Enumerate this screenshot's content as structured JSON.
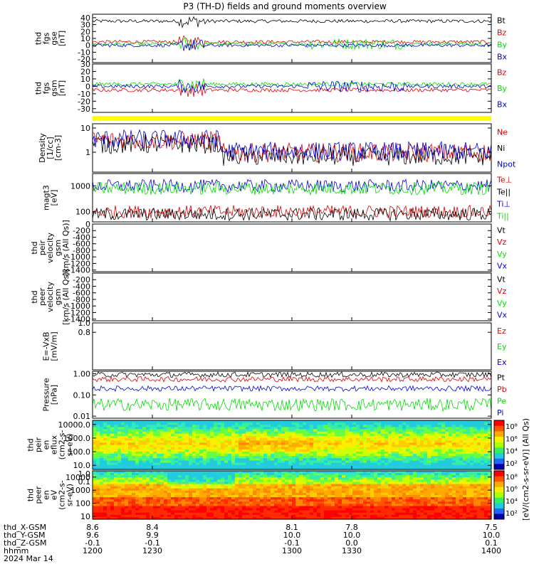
{
  "title": "P3 (TH-D) fields and ground moments overview",
  "colors": {
    "black": "#000000",
    "red": "#e00000",
    "green": "#00dd00",
    "blue": "#0000e0",
    "yellow": "#ffff00"
  },
  "chart_data": [
    {
      "id": "fgs_gse",
      "type": "line",
      "ylabel": [
        "thd",
        "fgs",
        "gse",
        "[nT]"
      ],
      "ylim": [
        -25,
        45
      ],
      "ticks": [
        "40",
        "30",
        "20",
        "10",
        "0",
        "-10",
        "-20"
      ],
      "tick_values": [
        40,
        30,
        20,
        10,
        0,
        -10,
        -20
      ],
      "series": [
        {
          "name": "Bt",
          "color": "black",
          "level": 35
        },
        {
          "name": "Bz",
          "color": "red",
          "level": 5
        },
        {
          "name": "By",
          "color": "green",
          "level": 2
        },
        {
          "name": "Bx",
          "color": "blue",
          "level": 0
        }
      ]
    },
    {
      "id": "fgs_gsm",
      "type": "line",
      "ylabel": [
        "thd",
        "fgs",
        "gsm",
        "[nT]"
      ],
      "ylim": [
        -35,
        30
      ],
      "ticks": [
        "30",
        "20",
        "10",
        "0",
        "-10",
        "-20",
        "-30"
      ],
      "tick_values": [
        30,
        20,
        10,
        0,
        -10,
        -20,
        -30
      ],
      "series": [
        {
          "name": "Bz",
          "color": "red",
          "level": -5
        },
        {
          "name": "By",
          "color": "green",
          "level": 3
        },
        {
          "name": "Bx",
          "color": "blue",
          "level": 0
        }
      ]
    },
    {
      "id": "density",
      "type": "line",
      "ylabel": [
        "Density",
        "[1/cc]",
        "[cm-3]"
      ],
      "ylim": [
        0.15,
        15
      ],
      "ticks": [
        "10",
        "1"
      ],
      "tick_values": [
        10,
        1
      ],
      "series": [
        {
          "name": "Ne",
          "color": "red"
        },
        {
          "name": "Ni",
          "color": "black"
        },
        {
          "name": "Npot",
          "color": "blue"
        }
      ]
    },
    {
      "id": "temperature",
      "type": "line",
      "ylabel": [
        "magt3",
        "[eV]"
      ],
      "ylim": [
        40,
        3000
      ],
      "ticks": [
        "1000",
        "100"
      ],
      "tick_values": [
        1000,
        100
      ],
      "series": [
        {
          "name": "Te⊥",
          "color": "red"
        },
        {
          "name": "Te||",
          "color": "black"
        },
        {
          "name": "Ti⊥",
          "color": "blue"
        },
        {
          "name": "Ti||",
          "color": "green"
        }
      ]
    },
    {
      "id": "peir_velocity",
      "type": "line",
      "ylabel": [
        "thd",
        "peir",
        "velocity",
        "gsm",
        "[km/s (All Qs)]"
      ],
      "ylim": [
        -1450,
        0
      ],
      "ticks": [
        "0",
        "-200",
        "-400",
        "-600",
        "-800",
        "-1000",
        "-1200",
        "-1400"
      ],
      "tick_values": [
        0,
        -200,
        -400,
        -600,
        -800,
        -1000,
        -1200,
        -1400
      ],
      "series": [
        {
          "name": "Vt",
          "color": "black"
        },
        {
          "name": "Vz",
          "color": "red"
        },
        {
          "name": "Vy",
          "color": "green"
        },
        {
          "name": "Vx",
          "color": "blue"
        }
      ]
    },
    {
      "id": "peer_velocity",
      "type": "line",
      "ylabel": [
        "thd",
        "peer",
        "velocity",
        "gsm",
        "[km/s (All Qs)]"
      ],
      "ylim": [
        -1450,
        0
      ],
      "ticks": [
        "-200",
        "-400",
        "-600",
        "-800",
        "-1000",
        "-1200",
        "-1400"
      ],
      "tick_values": [
        -200,
        -400,
        -600,
        -800,
        -1000,
        -1200,
        -1400
      ],
      "series": [
        {
          "name": "Vt",
          "color": "black"
        },
        {
          "name": "Vz",
          "color": "red"
        },
        {
          "name": "Vy",
          "color": "green"
        },
        {
          "name": "Vx",
          "color": "blue"
        }
      ]
    },
    {
      "id": "efield",
      "type": "line",
      "ylabel": [
        "E=-VxB",
        "[mV/m]"
      ],
      "ylim": [
        0,
        1
      ],
      "ticks": [
        "1.0",
        "0.8"
      ],
      "tick_values": [
        1.0,
        0.8
      ],
      "series": [
        {
          "name": "Ez",
          "color": "red"
        },
        {
          "name": "Ey",
          "color": "green"
        },
        {
          "name": "Ex",
          "color": "blue"
        }
      ]
    },
    {
      "id": "pressure",
      "type": "line",
      "ylabel": [
        "Pressure",
        "[nPa]"
      ],
      "ylim": [
        0.008,
        1.3
      ],
      "ticks": [
        "1.00",
        "0.10",
        "0.01"
      ],
      "tick_values": [
        1.0,
        0.1,
        0.01
      ],
      "series": [
        {
          "name": "Pt",
          "color": "black",
          "level": 0.9
        },
        {
          "name": "Pb",
          "color": "red",
          "level": 0.55
        },
        {
          "name": "Pe",
          "color": "green",
          "level": 0.035
        },
        {
          "name": "Pi",
          "color": "blue",
          "level": 0.2
        }
      ]
    },
    {
      "id": "peir_spec",
      "type": "heatmap",
      "ylabel": [
        "thd",
        "peir",
        "en",
        "eflux",
        "(cm2-s-",
        "sr-eV)"
      ],
      "ylim": [
        5,
        20000
      ],
      "ticks": [
        "10000.0",
        "1000.0",
        "100.0",
        "10.0"
      ],
      "tick_values": [
        10000,
        1000,
        100,
        10
      ],
      "extra_ticks": [
        "1.0",
        "0.1"
      ]
    },
    {
      "id": "peer_spec",
      "type": "heatmap",
      "ylabel": [
        "thd",
        "peer",
        "en",
        "eV",
        "(cm2-s-",
        "sr-eV)"
      ],
      "ylim": [
        6,
        30000
      ],
      "ticks": [
        "10000",
        "1000",
        "100",
        "10"
      ],
      "tick_values": [
        10000,
        1000,
        100,
        10
      ]
    }
  ],
  "colorbar": {
    "label": "[eV/(cm2-s-sr-eV)] (All Qs)",
    "ticks_top": [
      "10⁸",
      "10⁶",
      "10⁴",
      "10²"
    ],
    "ticks_bottom": [
      "10⁸",
      "10⁶",
      "10⁴",
      "10²"
    ]
  },
  "x_axis": {
    "x_range": [
      1200,
      1400
    ],
    "tick_values": [
      1200,
      1230,
      1300,
      1330,
      1400
    ],
    "row_labels": [
      "thd_X-GSM",
      "thd_Y-GSM",
      "thd_Z-GSM",
      "hhmm",
      "2024 Mar 14"
    ],
    "x_gsm": [
      "8.6",
      "8.4",
      "8.1",
      "7.8",
      "7.5"
    ],
    "y_gsm": [
      "9.6",
      "9.9",
      "10.0",
      "10.0",
      "10.0"
    ],
    "z_gsm": [
      "-0.1",
      "-0.1",
      "-0.1",
      "0.0",
      "0.1"
    ],
    "hhmm": [
      "1200",
      "1230",
      "1300",
      "1330",
      "1400"
    ]
  }
}
